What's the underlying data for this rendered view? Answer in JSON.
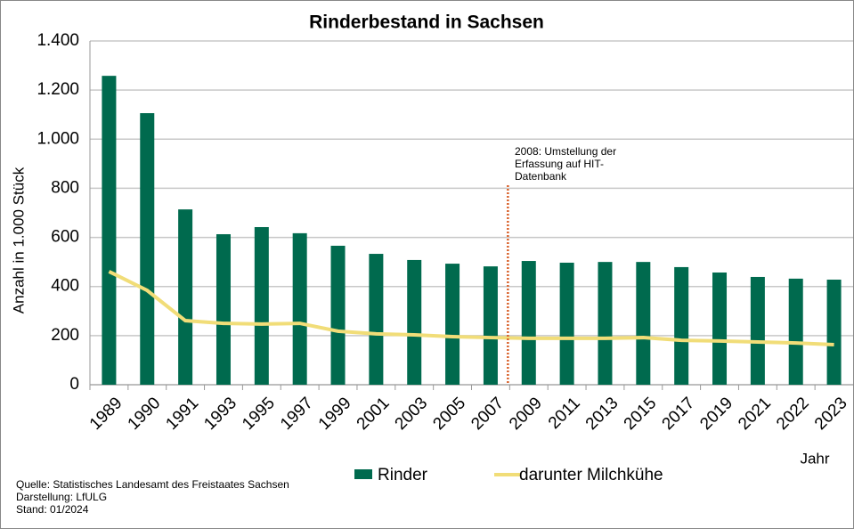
{
  "chart_data": {
    "type": "bar",
    "title": "Rinderbestand in Sachsen",
    "y_label": "Anzahl  in 1.000 Stück",
    "x_label": "Jahr",
    "categories": [
      "1989",
      "1990",
      "1991",
      "1993",
      "1995",
      "1997",
      "1999",
      "2001",
      "2003",
      "2005",
      "2007",
      "2009",
      "2011",
      "2013",
      "2015",
      "2017",
      "2019",
      "2021",
      "2022",
      "2023"
    ],
    "series": [
      {
        "name": "Rinder",
        "type": "bar",
        "color": "#006a4e",
        "values": [
          1258,
          1106,
          714,
          613,
          642,
          617,
          566,
          533,
          508,
          493,
          482,
          504,
          497,
          500,
          500,
          479,
          457,
          439,
          432,
          428
        ]
      },
      {
        "name": "darunter Milchkühe",
        "type": "line",
        "color": "#f1dd78",
        "values": [
          461,
          384,
          261,
          250,
          247,
          250,
          218,
          207,
          203,
          196,
          192,
          189,
          189,
          189,
          192,
          181,
          178,
          174,
          170,
          163
        ]
      }
    ],
    "ylim": [
      0,
      1400
    ],
    "yticks": [
      0,
      200,
      400,
      600,
      800,
      {
        "value": 1000,
        "label": "1.000"
      },
      {
        "value": 1200,
        "label": "1.200"
      },
      {
        "value": 1400,
        "label": "1.400"
      }
    ],
    "grid": true,
    "annotation": {
      "lines": [
        "2008: Umstellung der",
        "Erfassung auf HIT-",
        "Datenbank"
      ],
      "color": "#d9622b"
    },
    "source": [
      "Quelle: Statistisches Landesamt des Freistaates Sachsen",
      "Darstellung: LfULG",
      "Stand: 01/2024"
    ]
  }
}
